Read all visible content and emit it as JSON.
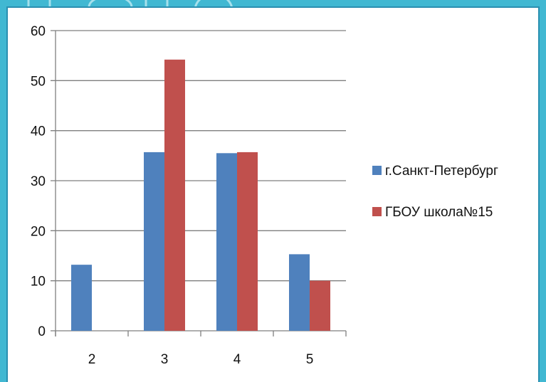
{
  "chart_data": {
    "type": "bar",
    "categories": [
      "2",
      "3",
      "4",
      "5"
    ],
    "series": [
      {
        "name": "г.Санкт-Петербург",
        "values": [
          13.2,
          35.7,
          35.5,
          15.3
        ],
        "color": "#4f81bd"
      },
      {
        "name": "ГБОУ школа№15",
        "values": [
          0,
          54.2,
          35.7,
          10
        ],
        "color": "#c0504d"
      }
    ],
    "yticks": [
      "0",
      "10",
      "20",
      "30",
      "40",
      "50",
      "60"
    ],
    "ylim": [
      0,
      60
    ],
    "grid": true,
    "legend": "right"
  },
  "frame": {
    "background": "#41b8d2",
    "border": "#2a8fb0"
  }
}
